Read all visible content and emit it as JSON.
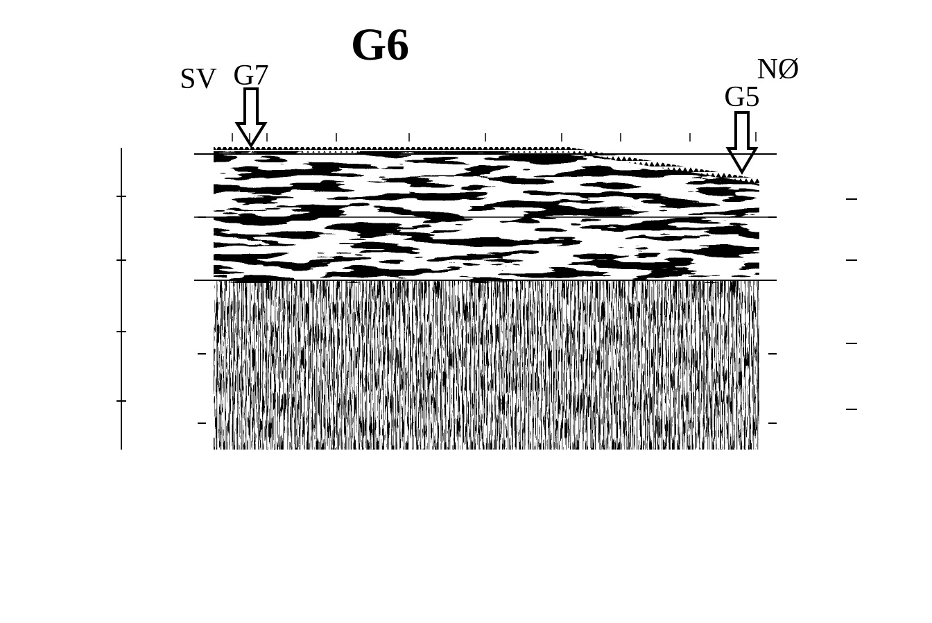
{
  "figure": {
    "title": "G6",
    "left_end": "SV",
    "right_end": "NØ",
    "left_marker": "G7",
    "right_marker": "G5"
  }
}
